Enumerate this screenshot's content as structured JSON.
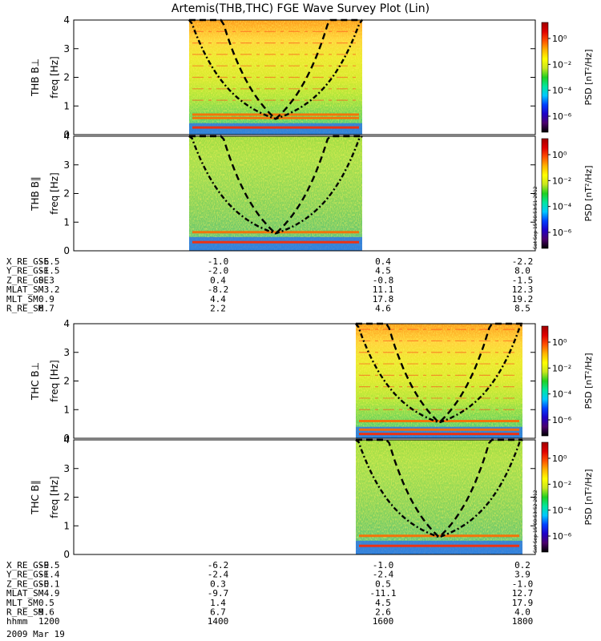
{
  "title": "Artemis(THB,THC) FGE Wave Survey Plot (Lin)",
  "date_label": "2009 Mar 19",
  "colors": {
    "gap_line": "#000000",
    "background": "#ffffff"
  },
  "colorbar": {
    "label": "PSD [nT²/Hz]",
    "ticks": [
      "10⁰",
      "10⁻²",
      "10⁻⁴",
      "10⁻⁶"
    ],
    "stops": [
      "#000000",
      "#4b006e",
      "#2000c8",
      "#0040ff",
      "#00c8ff",
      "#00e6a0",
      "#20d020",
      "#c8e61e",
      "#ffff00",
      "#ffb400",
      "#ff5000",
      "#e00000",
      "#a00000"
    ]
  },
  "timestamps": {
    "thb": "Sat Sep 15 08:53:51 2012",
    "thc": "Sat Sep 15 08:53:52 2012"
  },
  "ephemeris_top": {
    "rows": [
      {
        "label": "X_RE_GSE",
        "values": [
          "-6.5",
          "-1.0",
          "0.4",
          "-2.2"
        ]
      },
      {
        "label": "Y_RE_GSE",
        "values": [
          "-1.5",
          "-2.0",
          "4.5",
          "8.0"
        ]
      },
      {
        "label": "Z_RE_GSE",
        "values": [
          "0.3",
          "0.4",
          "-0.8",
          "-1.5"
        ]
      },
      {
        "label": "MLAT_SM",
        "values": [
          "-3.2",
          "-8.2",
          "11.1",
          "12.3"
        ]
      },
      {
        "label": "MLT_SM",
        "values": [
          "0.9",
          "4.4",
          "17.8",
          "19.2"
        ]
      },
      {
        "label": "R_RE_SM",
        "values": [
          "6.7",
          "2.2",
          "4.6",
          "8.5"
        ]
      }
    ]
  },
  "ephemeris_bottom": {
    "rows": [
      {
        "label": "X_RE_GSE",
        "values": [
          "-9.5",
          "-6.2",
          "-1.0",
          "0.2"
        ]
      },
      {
        "label": "Y_RE_GSE",
        "values": [
          "-1.4",
          "-2.4",
          "-2.4",
          "3.9"
        ]
      },
      {
        "label": "Z_RE_GSE",
        "values": [
          "-0.1",
          "0.3",
          "0.5",
          "-1.0"
        ]
      },
      {
        "label": "MLAT_SM",
        "values": [
          "-4.9",
          "-9.7",
          "-11.1",
          "12.7"
        ]
      },
      {
        "label": "MLT_SM",
        "values": [
          "0.5",
          "1.4",
          "4.5",
          "17.9"
        ]
      },
      {
        "label": "R_RE_SM",
        "values": [
          "9.6",
          "6.7",
          "2.6",
          "4.0"
        ]
      },
      {
        "label": "hhmm",
        "values": [
          "1200",
          "1400",
          "1600",
          "1800"
        ]
      }
    ]
  },
  "chart_data": [
    {
      "type": "heatmap",
      "name": "THB B⊥",
      "ylabel_top": "THB B⊥",
      "ylabel": "freq [Hz]",
      "yticks": [
        "0",
        "1",
        "2",
        "3",
        "4"
      ],
      "ylim": [
        0,
        4
      ],
      "xlim": [
        "1200",
        "1800"
      ],
      "data_span": [
        "1330",
        "1545"
      ],
      "ridge_freqs_hz": [
        0.25,
        0.58,
        0.7,
        1.2,
        1.6,
        2.0,
        2.4,
        2.8,
        3.2,
        3.6
      ],
      "noise_level": "high"
    },
    {
      "type": "heatmap",
      "name": "THB B∥",
      "ylabel_top": "THB B∥",
      "ylabel": "freq [Hz]",
      "yticks": [
        "0",
        "1",
        "2",
        "3",
        "4"
      ],
      "ylim": [
        0,
        4
      ],
      "xlim": [
        "1200",
        "1800"
      ],
      "data_span": [
        "1330",
        "1545"
      ],
      "ridge_freqs_hz": [
        0.3,
        0.65
      ],
      "noise_level": "low"
    },
    {
      "type": "heatmap",
      "name": "THC B⊥",
      "ylabel_top": "THC B⊥",
      "ylabel": "freq [Hz]",
      "yticks": [
        "0",
        "1",
        "2",
        "3",
        "4"
      ],
      "ylim": [
        0,
        4
      ],
      "xlim": [
        "1200",
        "1800"
      ],
      "data_span": [
        "1540",
        "1750"
      ],
      "ridge_freqs_hz": [
        0.15,
        0.3,
        0.6,
        1.0,
        1.4,
        1.8,
        2.2,
        2.6,
        3.0,
        3.4,
        3.8
      ],
      "noise_level": "high"
    },
    {
      "type": "heatmap",
      "name": "THC B∥",
      "ylabel_top": "THC B∥",
      "ylabel": "freq [Hz]",
      "yticks": [
        "0",
        "1",
        "2",
        "3",
        "4"
      ],
      "ylim": [
        0,
        4
      ],
      "xlim": [
        "1200",
        "1800"
      ],
      "data_span": [
        "1540",
        "1750"
      ],
      "ridge_freqs_hz": [
        0.3,
        0.65
      ],
      "noise_level": "low"
    }
  ]
}
